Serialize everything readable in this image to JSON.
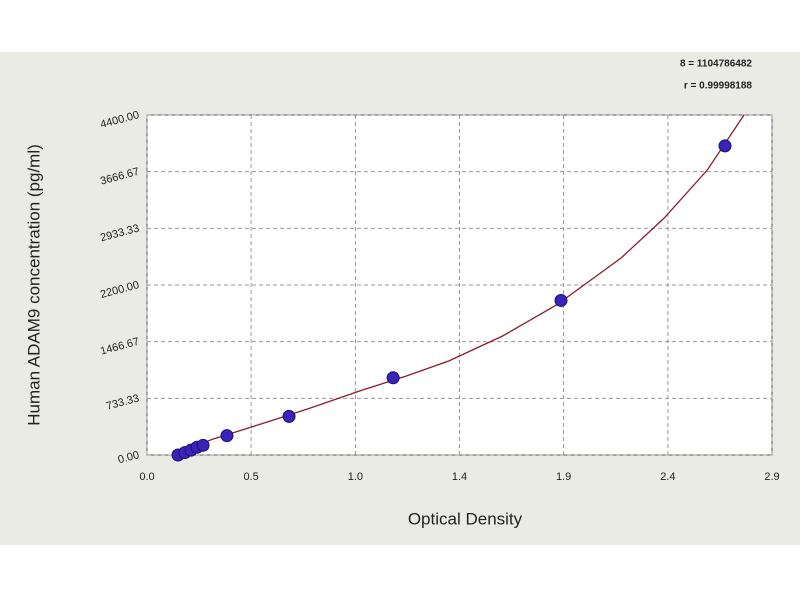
{
  "chart_data": {
    "type": "scatter",
    "x_label": "Optical Density",
    "y_label": "Human ADAM9 concentration (pg/ml)",
    "annotations": [
      "8 = 1104786482",
      "r = 0.99998188"
    ],
    "xlim": [
      0,
      2.9
    ],
    "ylim": [
      0,
      4400
    ],
    "xticks": [
      {
        "value": 0,
        "label": "0.0"
      },
      {
        "value": 0.483,
        "label": "0.5"
      },
      {
        "value": 0.967,
        "label": "1.0"
      },
      {
        "value": 1.45,
        "label": "1.4"
      },
      {
        "value": 1.933,
        "label": "1.9"
      },
      {
        "value": 2.417,
        "label": "2.4"
      },
      2.9
    ],
    "yticks": [
      {
        "value": 0,
        "label": "0.00"
      },
      733.33,
      1466.67,
      {
        "value": 2200,
        "label": "2200.00"
      },
      2933.33,
      3666.67,
      {
        "value": 4400,
        "label": "4400.00"
      }
    ],
    "grid": true,
    "points": {
      "color": "#3b22b8",
      "x": [
        0.144,
        0.176,
        0.204,
        0.232,
        0.26,
        0.371,
        0.659,
        1.142,
        1.921,
        2.682
      ],
      "values": [
        0,
        31.25,
        62.5,
        100,
        125,
        250,
        500,
        1000,
        2000,
        4000
      ]
    },
    "curve": {
      "color": "#8c1c2c",
      "x": [
        0.12,
        0.3,
        0.5,
        0.75,
        1.0,
        1.2,
        1.4,
        1.65,
        1.9,
        2.2,
        2.4,
        2.6,
        2.77
      ],
      "values": [
        0,
        200,
        375,
        600,
        841,
        1020,
        1216,
        1540,
        1941,
        2549,
        3067,
        3688,
        4400
      ]
    }
  }
}
